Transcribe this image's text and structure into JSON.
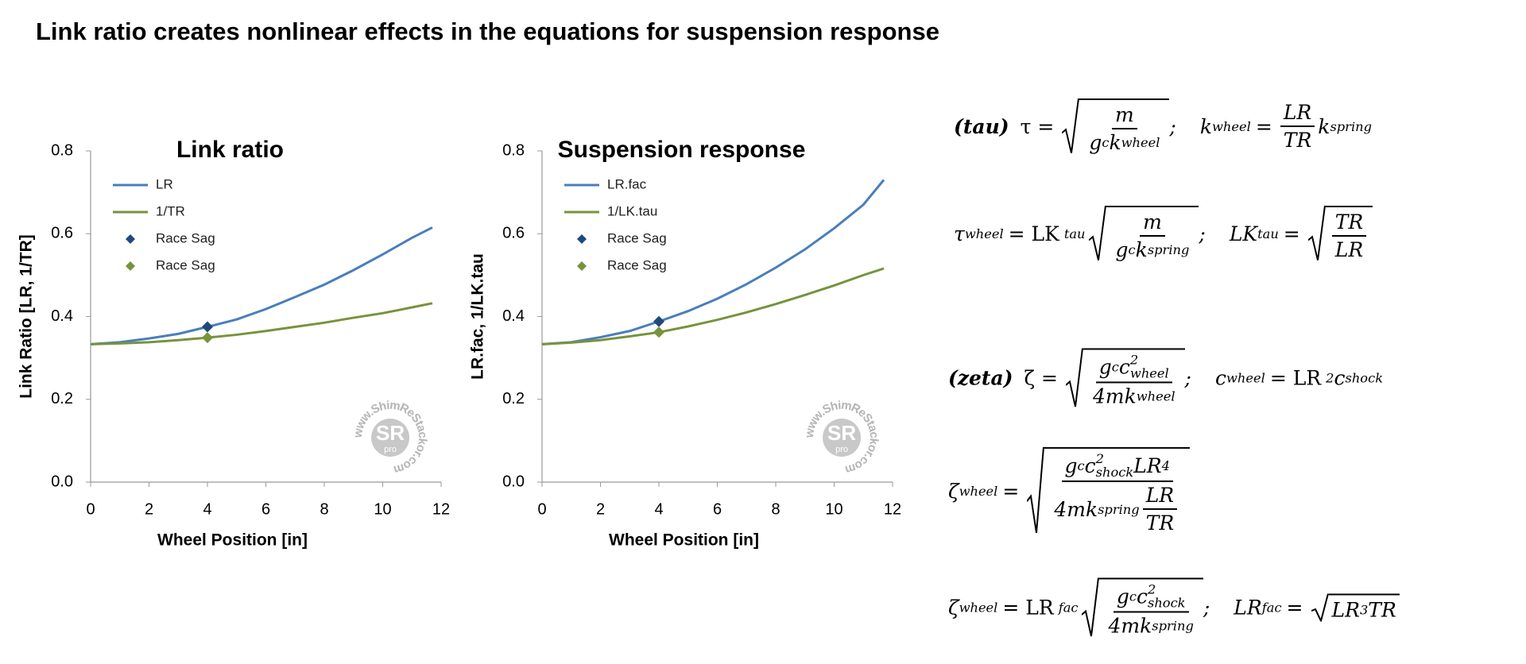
{
  "title": "Link ratio creates nonlinear effects in the equations for suspension response",
  "chart_data": [
    {
      "type": "line",
      "title": "Link ratio",
      "x_label": "Wheel Position [in]",
      "y_label": "Link Ratio [LR, 1/TR]",
      "xlim": [
        0,
        12
      ],
      "xticks": [
        0,
        2,
        4,
        6,
        8,
        10,
        12
      ],
      "ylim": [
        0,
        0.8
      ],
      "yticks": [
        {
          "value": 0,
          "label": "0.0"
        },
        0.2,
        0.4,
        0.6,
        0.8
      ],
      "legend": "upper left",
      "grid": false,
      "series": [
        {
          "name": "LR",
          "type": "line",
          "color": "#4a7ebb",
          "x": [
            0,
            1,
            2,
            3,
            4,
            5,
            6,
            7,
            8,
            9,
            10,
            11,
            11.7
          ],
          "values": [
            0.333,
            0.338,
            0.347,
            0.358,
            0.375,
            0.393,
            0.418,
            0.447,
            0.477,
            0.512,
            0.55,
            0.59,
            0.615
          ]
        },
        {
          "name": "1/TR",
          "type": "line",
          "color": "#77933c",
          "x": [
            0,
            1,
            2,
            3,
            4,
            5,
            6,
            7,
            8,
            9,
            10,
            11,
            11.7
          ],
          "values": [
            0.333,
            0.335,
            0.338,
            0.343,
            0.349,
            0.356,
            0.365,
            0.375,
            0.385,
            0.397,
            0.408,
            0.422,
            0.432
          ]
        },
        {
          "name": "Race Sag",
          "type": "scatter",
          "color": "#1f497d",
          "x": [
            4
          ],
          "values": [
            0.375
          ]
        },
        {
          "name": "Race Sag",
          "type": "scatter",
          "color": "#77933c",
          "x": [
            4
          ],
          "values": [
            0.349
          ]
        }
      ],
      "watermark": {
        "ring": "www.ShimReStackor.com",
        "logo": "SR",
        "sub": "pro"
      }
    },
    {
      "type": "line",
      "title": "Suspension response",
      "x_label": "Wheel Position [in]",
      "y_label": "LR.fac, 1/LK.tau",
      "xlim": [
        0,
        12
      ],
      "xticks": [
        0,
        2,
        4,
        6,
        8,
        10,
        12
      ],
      "ylim": [
        0,
        0.8
      ],
      "yticks": [
        {
          "value": 0,
          "label": "0.0"
        },
        0.2,
        0.4,
        0.6,
        0.8
      ],
      "legend": "upper left",
      "grid": false,
      "series": [
        {
          "name": "LR.fac",
          "type": "line",
          "color": "#4a7ebb",
          "x": [
            0,
            1,
            2,
            3,
            4,
            5,
            6,
            7,
            8,
            9,
            10,
            11,
            11.7
          ],
          "values": [
            0.333,
            0.338,
            0.35,
            0.365,
            0.388,
            0.413,
            0.443,
            0.478,
            0.518,
            0.562,
            0.613,
            0.67,
            0.73
          ]
        },
        {
          "name": "1/LK.tau",
          "type": "line",
          "color": "#77933c",
          "x": [
            0,
            1,
            2,
            3,
            4,
            5,
            6,
            7,
            8,
            9,
            10,
            11,
            11.7
          ],
          "values": [
            0.333,
            0.337,
            0.343,
            0.352,
            0.362,
            0.376,
            0.392,
            0.41,
            0.43,
            0.452,
            0.475,
            0.5,
            0.516
          ]
        },
        {
          "name": "Race Sag",
          "type": "scatter",
          "color": "#1f497d",
          "x": [
            4
          ],
          "values": [
            0.388
          ]
        },
        {
          "name": "Race Sag",
          "type": "scatter",
          "color": "#77933c",
          "x": [
            4
          ],
          "values": [
            0.362
          ]
        }
      ],
      "watermark": {
        "ring": "www.ShimReStackor.com",
        "logo": "SR",
        "sub": "pro"
      }
    }
  ],
  "equations": [
    [
      "(tau)",
      "τ =",
      "m",
      "g",
      "c",
      "k",
      "wheel",
      ";",
      "k",
      "wheel",
      "=",
      "LR",
      "TR",
      "k",
      "spring"
    ],
    [
      "τ",
      "wheel",
      "= LK",
      "tau",
      "m",
      "g",
      "c",
      "k",
      "spring",
      ";",
      "LK",
      "tau",
      "=",
      "TR",
      "LR"
    ],
    [
      "(zeta)",
      "ζ =",
      "g",
      "c",
      "c",
      "2",
      "wheel",
      "4mk",
      "wheel",
      ";",
      "c",
      "wheel",
      "= LR",
      "2",
      "c",
      "shock"
    ],
    [
      "ζ",
      "wheel",
      "=",
      "g",
      "c",
      "c",
      "2",
      "shock",
      "LR",
      "4",
      "4mk",
      "spring",
      "LR",
      "TR"
    ],
    [
      "ζ",
      "wheel",
      "= LR",
      "fac",
      "g",
      "c",
      "c",
      "2",
      "shock",
      "4mk",
      "spring",
      ";",
      "LR",
      "fac",
      "=",
      "LR",
      "3",
      "TR"
    ]
  ]
}
